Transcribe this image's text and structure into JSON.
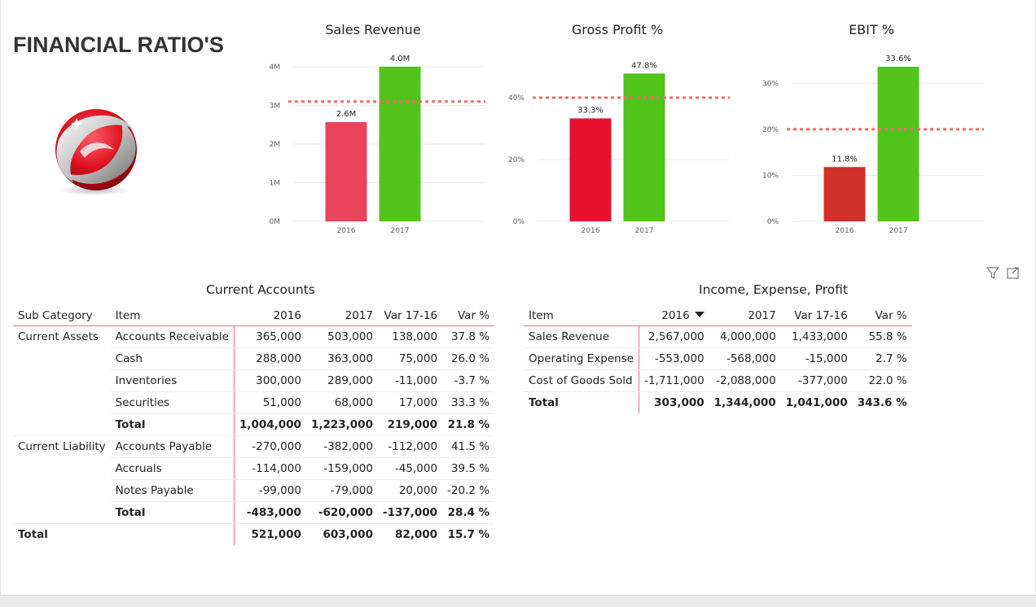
{
  "page": {
    "title": "FINANCIAL RATIO'S"
  },
  "chart_data": [
    {
      "type": "bar",
      "title": "Sales Revenue",
      "categories": [
        "2016",
        "2017"
      ],
      "values": [
        2567000,
        4000000
      ],
      "data_labels": [
        "2.6M",
        "4.0M"
      ],
      "bar_colors": [
        "#e8445a",
        "#52c41a"
      ],
      "ylim": [
        0,
        4000000
      ],
      "yticks": [
        0,
        1000000,
        2000000,
        3000000,
        4000000
      ],
      "ytick_labels": [
        "0M",
        "1M",
        "2M",
        "3M",
        "4M"
      ],
      "reference_line": 3100000,
      "reference_color": "#f26b6b",
      "grid": true,
      "xlabel": "",
      "ylabel": ""
    },
    {
      "type": "bar",
      "title": "Gross Profit %",
      "categories": [
        "2016",
        "2017"
      ],
      "values": [
        33.3,
        47.8
      ],
      "data_labels": [
        "33.3%",
        "47.8%"
      ],
      "bar_colors": [
        "#e8112d",
        "#52c41a"
      ],
      "ylim": [
        0,
        50
      ],
      "yticks": [
        0,
        20,
        40
      ],
      "ytick_labels": [
        "0%",
        "20%",
        "40%"
      ],
      "reference_line": 40,
      "reference_color": "#f26b6b",
      "grid": true,
      "xlabel": "",
      "ylabel": ""
    },
    {
      "type": "bar",
      "title": "EBIT %",
      "categories": [
        "2016",
        "2017"
      ],
      "values": [
        11.8,
        33.6
      ],
      "data_labels": [
        "11.8%",
        "33.6%"
      ],
      "bar_colors": [
        "#d0302a",
        "#52c41a"
      ],
      "ylim": [
        0,
        33.6
      ],
      "yticks": [
        0,
        10,
        20,
        30
      ],
      "ytick_labels": [
        "0%",
        "10%",
        "20%",
        "30%"
      ],
      "reference_line": 20,
      "reference_color": "#f26b6b",
      "grid": true,
      "xlabel": "",
      "ylabel": ""
    }
  ],
  "current_accounts": {
    "title": "Current Accounts",
    "headers": [
      "Sub Category",
      "Item",
      "2016",
      "2017",
      "Var 17-16",
      "Var %"
    ],
    "rows": [
      {
        "cat": "Current Assets",
        "item": "Accounts Receivable",
        "y2016": "365,000",
        "y2017": "503,000",
        "var": "138,000",
        "pct": "37.8 %"
      },
      {
        "cat": "",
        "item": "Cash",
        "y2016": "288,000",
        "y2017": "363,000",
        "var": "75,000",
        "pct": "26.0 %"
      },
      {
        "cat": "",
        "item": "Inventories",
        "y2016": "300,000",
        "y2017": "289,000",
        "var": "-11,000",
        "pct": "-3.7 %"
      },
      {
        "cat": "",
        "item": "Securities",
        "y2016": "51,000",
        "y2017": "68,000",
        "var": "17,000",
        "pct": "33.3 %"
      },
      {
        "cat": "",
        "item": "Total",
        "y2016": "1,004,000",
        "y2017": "1,223,000",
        "var": "219,000",
        "pct": "21.8 %"
      },
      {
        "cat": "Current Liability",
        "item": "Accounts Payable",
        "y2016": "-270,000",
        "y2017": "-382,000",
        "var": "-112,000",
        "pct": "41.5 %"
      },
      {
        "cat": "",
        "item": "Accruals",
        "y2016": "-114,000",
        "y2017": "-159,000",
        "var": "-45,000",
        "pct": "39.5 %"
      },
      {
        "cat": "",
        "item": "Notes Payable",
        "y2016": "-99,000",
        "y2017": "-79,000",
        "var": "20,000",
        "pct": "-20.2 %"
      },
      {
        "cat": "",
        "item": "Total",
        "y2016": "-483,000",
        "y2017": "-620,000",
        "var": "-137,000",
        "pct": "28.4 %"
      },
      {
        "cat": "Total",
        "item": "",
        "y2016": "521,000",
        "y2017": "603,000",
        "var": "82,000",
        "pct": "15.7 %"
      }
    ]
  },
  "income_expense_profit": {
    "title": "Income, Expense, Profit",
    "headers": [
      "Item",
      "2016",
      "2017",
      "Var 17-16",
      "Var %"
    ],
    "rows": [
      {
        "item": "Sales Revenue",
        "y2016": "2,567,000",
        "y2017": "4,000,000",
        "var": "1,433,000",
        "pct": "55.8 %"
      },
      {
        "item": "Operating Expense",
        "y2016": "-553,000",
        "y2017": "-568,000",
        "var": "-15,000",
        "pct": "2.7 %"
      },
      {
        "item": "Cost of Goods Sold",
        "y2016": "-1,711,000",
        "y2017": "-2,088,000",
        "var": "-377,000",
        "pct": "22.0 %"
      },
      {
        "item": "Total",
        "y2016": "303,000",
        "y2017": "1,344,000",
        "var": "1,041,000",
        "pct": "343.6 %"
      }
    ]
  },
  "icons": {
    "filter": "filter-icon",
    "focus": "focus-mode-icon"
  }
}
